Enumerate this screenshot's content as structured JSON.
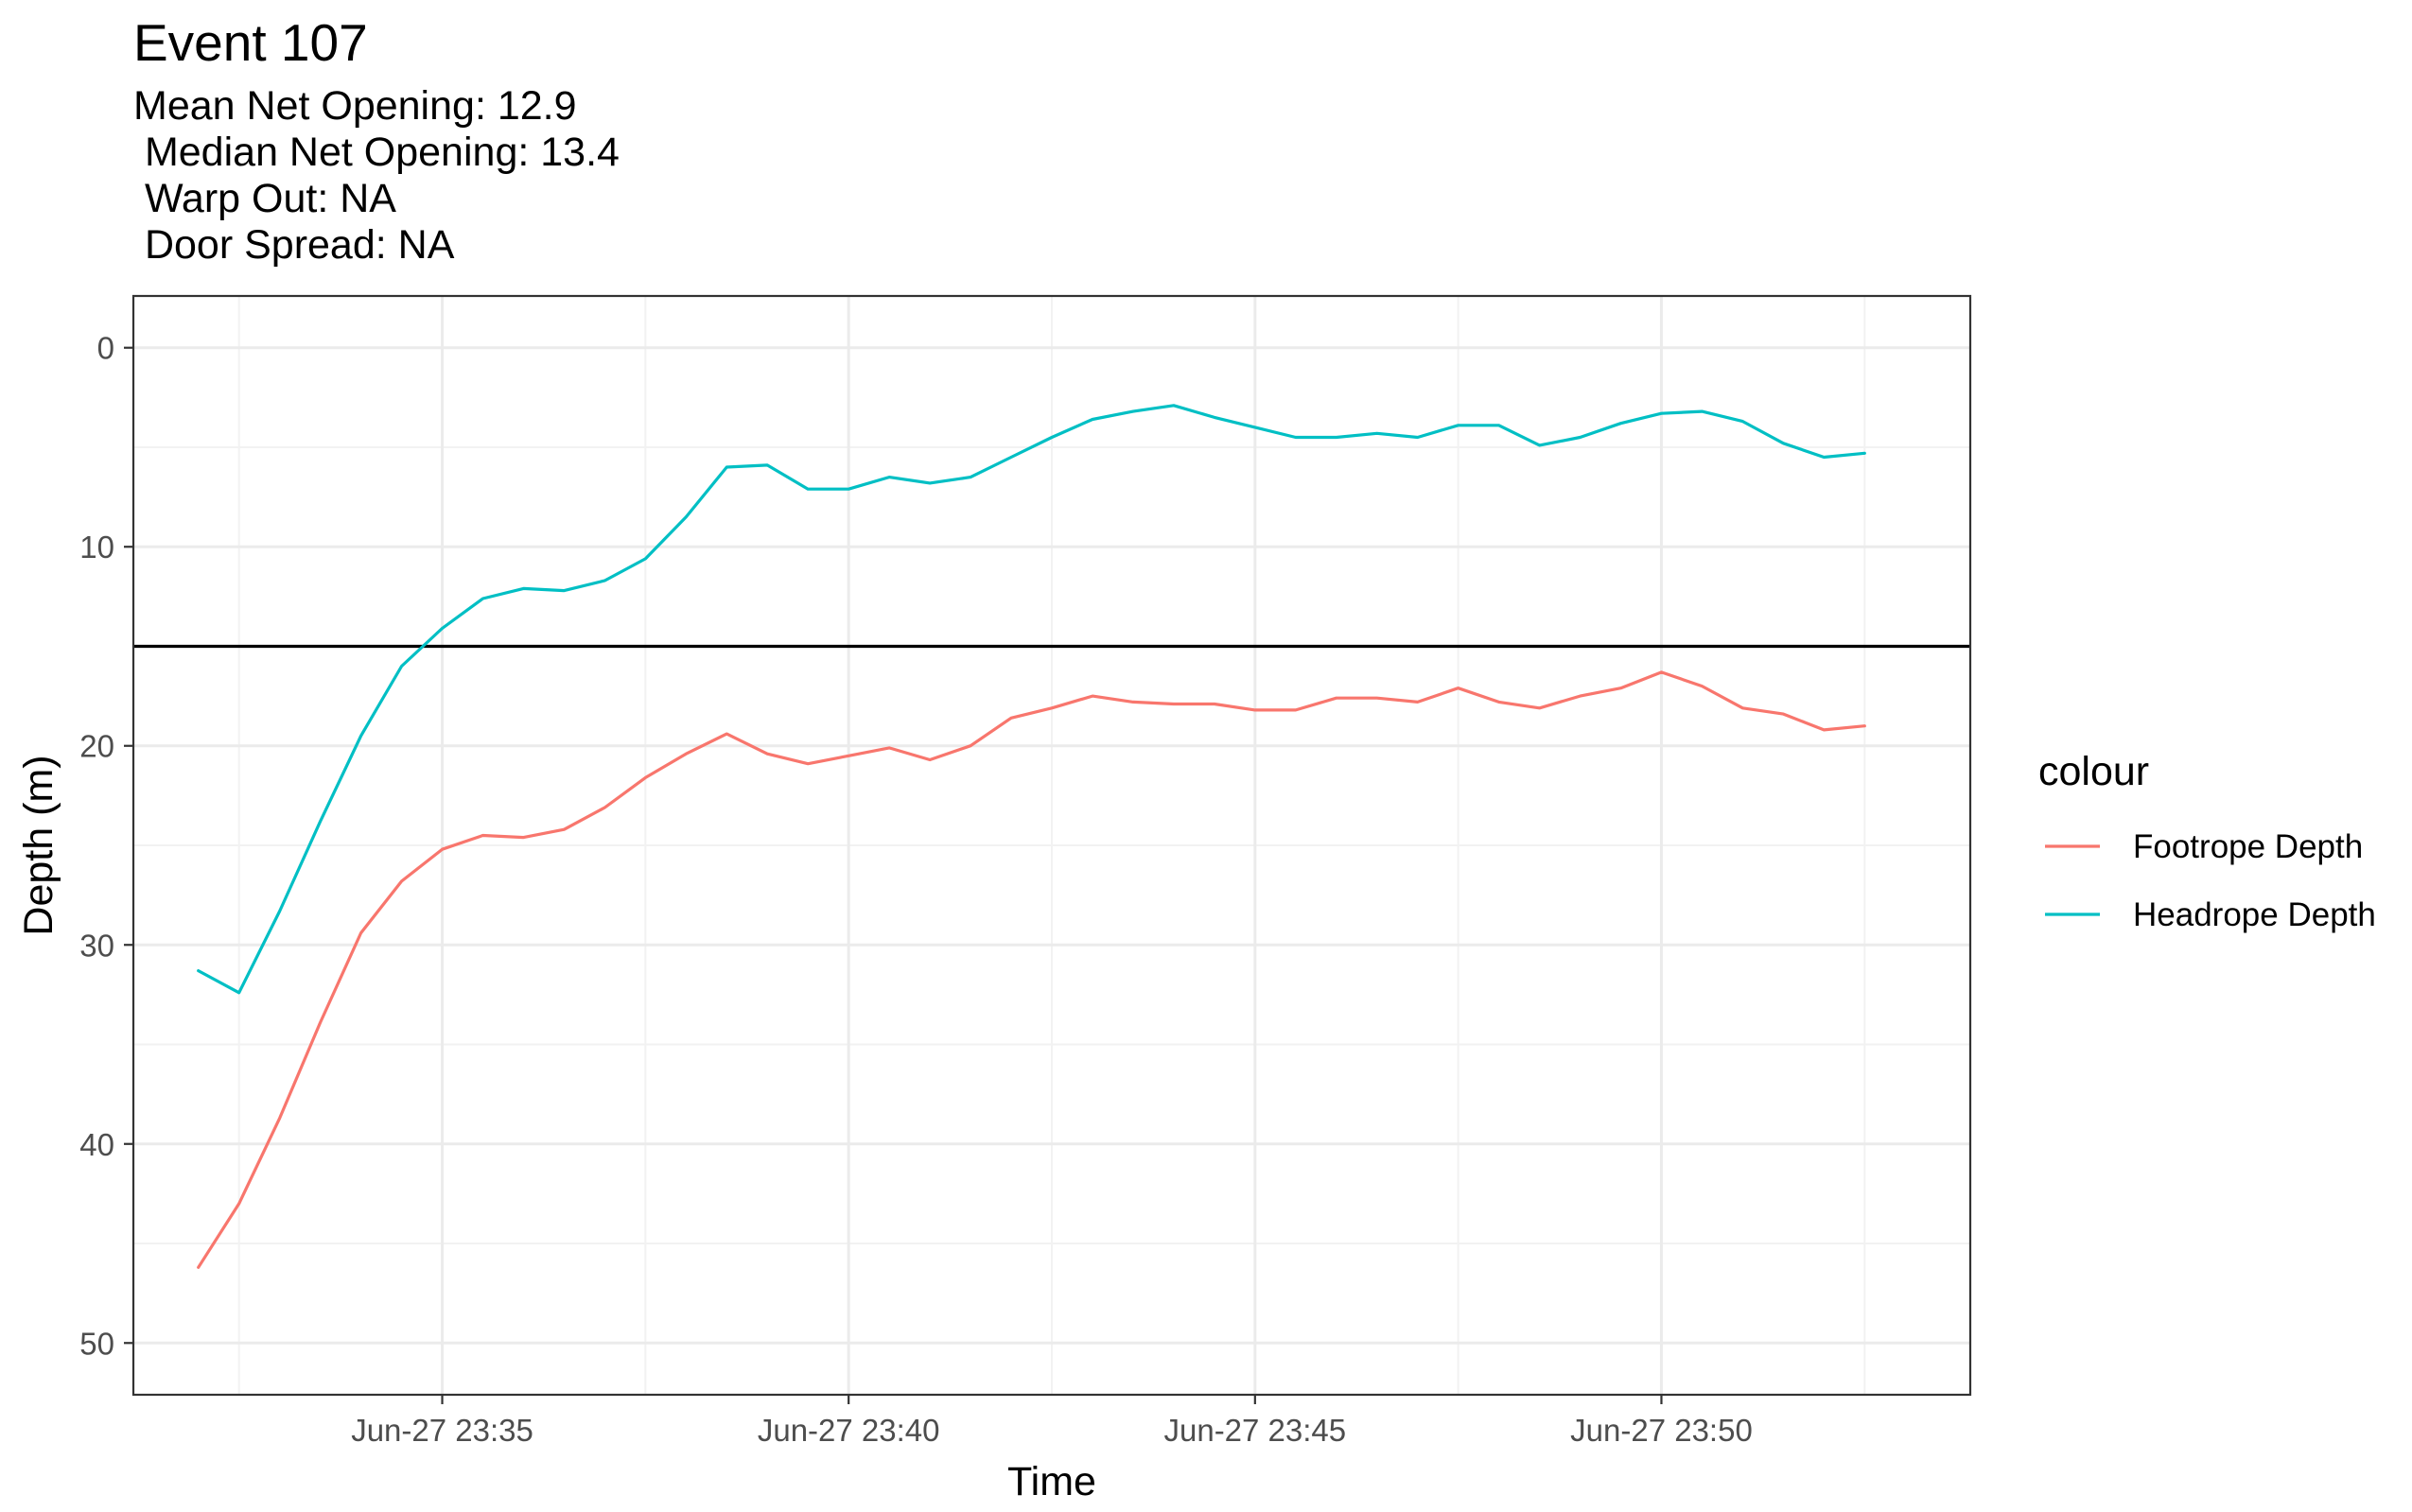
{
  "title": "Event 107",
  "subtitle": "Mean Net Opening: 12.9\n Median Net Opening: 13.4\n Warp Out: NA\n Door Spread: NA",
  "chart_data": {
    "type": "line",
    "title": "Event 107",
    "subtitle": "Mean Net Opening: 12.9\n Median Net Opening: 13.4\n Warp Out: NA\n Door Spread: NA",
    "xlabel": "Time",
    "ylabel": "Depth (m)",
    "x_unit": "minutes past Jun-27 23:00",
    "xlim": [
      31.2,
      53.8
    ],
    "ylim": [
      52.6,
      -2.6
    ],
    "y_reversed": true,
    "x_ticks": [
      {
        "value": 35,
        "label": "Jun-27 23:35"
      },
      {
        "value": 40,
        "label": "Jun-27 23:40"
      },
      {
        "value": 45,
        "label": "Jun-27 23:45"
      },
      {
        "value": 50,
        "label": "Jun-27 23:50"
      }
    ],
    "y_ticks": [
      0,
      10,
      20,
      30,
      40,
      50
    ],
    "grid": true,
    "hline": 15,
    "legend": {
      "title": "colour",
      "position": "right"
    },
    "x": [
      32.0,
      32.5,
      33.0,
      33.5,
      34.0,
      34.5,
      35.0,
      35.5,
      36.0,
      36.5,
      37.0,
      37.5,
      38.0,
      38.5,
      39.0,
      39.5,
      40.0,
      40.5,
      41.0,
      41.5,
      42.0,
      42.5,
      43.0,
      43.5,
      44.0,
      44.5,
      45.0,
      45.5,
      46.0,
      46.5,
      47.0,
      47.5,
      48.0,
      48.5,
      49.0,
      49.5,
      50.0,
      50.5,
      51.0,
      51.5,
      52.0,
      52.5
    ],
    "series": [
      {
        "name": "Footrope Depth",
        "color": "#F8766D",
        "values": [
          46.2,
          43.0,
          38.7,
          33.9,
          29.4,
          26.8,
          25.2,
          24.5,
          24.6,
          24.2,
          23.1,
          21.6,
          20.4,
          19.4,
          20.4,
          20.9,
          20.5,
          20.1,
          20.7,
          20.0,
          18.6,
          18.1,
          17.5,
          17.8,
          17.9,
          17.9,
          18.2,
          18.2,
          17.6,
          17.6,
          17.8,
          17.1,
          17.8,
          18.1,
          17.5,
          17.1,
          16.3,
          17.0,
          18.1,
          18.4,
          19.2,
          19.0
        ]
      },
      {
        "name": "Headrope Depth",
        "color": "#00BFC4",
        "values": [
          31.3,
          32.4,
          28.3,
          23.8,
          19.5,
          16.0,
          14.1,
          12.6,
          12.1,
          12.2,
          11.7,
          10.6,
          8.5,
          6.0,
          5.9,
          7.1,
          7.1,
          6.5,
          6.8,
          6.5,
          5.5,
          4.5,
          3.6,
          3.2,
          2.9,
          3.5,
          4.0,
          4.5,
          4.5,
          4.3,
          4.5,
          3.9,
          3.9,
          4.9,
          4.5,
          3.8,
          3.3,
          3.2,
          3.7,
          4.8,
          5.5,
          5.3
        ]
      }
    ]
  }
}
